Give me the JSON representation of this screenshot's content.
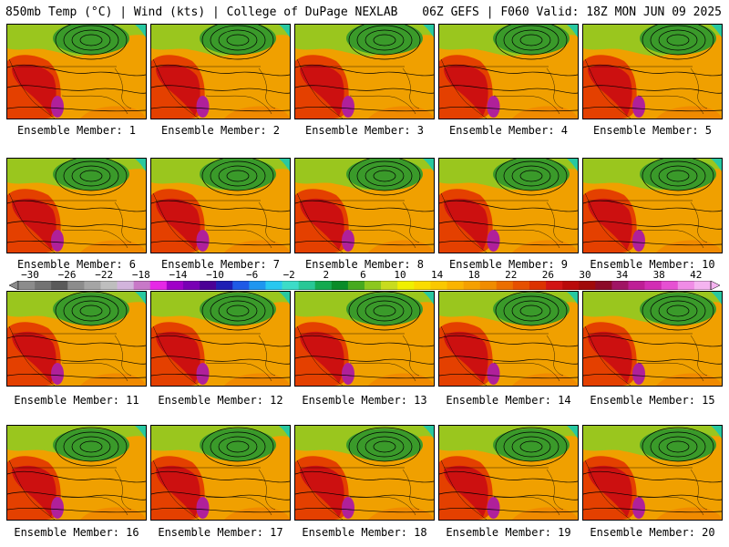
{
  "header": {
    "left": "850mb Temp (°C) | Wind (kts) | College of DuPage NEXLAB",
    "right": "06Z GEFS | F060 Valid: 18Z MON JUN 09 2025"
  },
  "panels": [
    {
      "caption": "Ensemble Member: 1"
    },
    {
      "caption": "Ensemble Member: 2"
    },
    {
      "caption": "Ensemble Member: 3"
    },
    {
      "caption": "Ensemble Member: 4"
    },
    {
      "caption": "Ensemble Member: 5"
    },
    {
      "caption": "Ensemble Member: 6"
    },
    {
      "caption": "Ensemble Member: 7"
    },
    {
      "caption": "Ensemble Member: 8"
    },
    {
      "caption": "Ensemble Member: 9"
    },
    {
      "caption": "Ensemble Member: 10"
    },
    {
      "caption": "Ensemble Member: 11"
    },
    {
      "caption": "Ensemble Member: 12"
    },
    {
      "caption": "Ensemble Member: 13"
    },
    {
      "caption": "Ensemble Member: 14"
    },
    {
      "caption": "Ensemble Member: 15"
    },
    {
      "caption": "Ensemble Member: 16"
    },
    {
      "caption": "Ensemble Member: 17"
    },
    {
      "caption": "Ensemble Member: 18"
    },
    {
      "caption": "Ensemble Member: 19"
    },
    {
      "caption": "Ensemble Member: 20"
    }
  ],
  "colorbar": {
    "labels": [
      "−30",
      "−26",
      "−22",
      "−18",
      "−14",
      "−10",
      "−6",
      "−2",
      "2",
      "6",
      "10",
      "14",
      "18",
      "22",
      "26",
      "30",
      "34",
      "38",
      "42"
    ],
    "colors": [
      "#8c8c8c",
      "#737373",
      "#5a5a5a",
      "#8c8c8c",
      "#a5a5a5",
      "#bebebe",
      "#d2b4dc",
      "#c878c8",
      "#e628e6",
      "#a000c8",
      "#7800b4",
      "#4b0096",
      "#1e1eb4",
      "#1e5ae6",
      "#1e96f0",
      "#28c8f0",
      "#3cdcc8",
      "#28c896",
      "#14aa50",
      "#0a8c28",
      "#46aa1e",
      "#8cc81e",
      "#c8dc1e",
      "#f0f000",
      "#fadc00",
      "#fac800",
      "#fab400",
      "#f5a000",
      "#f08c00",
      "#eb6e00",
      "#e65000",
      "#dc3200",
      "#d21414",
      "#b90a0a",
      "#a00a0a",
      "#8c0a28",
      "#a01464",
      "#be1e96",
      "#d22db4",
      "#e650d2",
      "#f08ce6",
      "#f5b4f0"
    ]
  },
  "field_colors": {
    "land_cool": "#3a9a2a",
    "land_mild": "#9ac61e",
    "land_warm": "#f0a000",
    "land_hot": "#e44000",
    "land_vhot": "#cc1010",
    "land_extreme": "#b0209a",
    "ocean_warm": "#f08000",
    "ocean_teal": "#28c8a0",
    "contour": "#000000"
  }
}
